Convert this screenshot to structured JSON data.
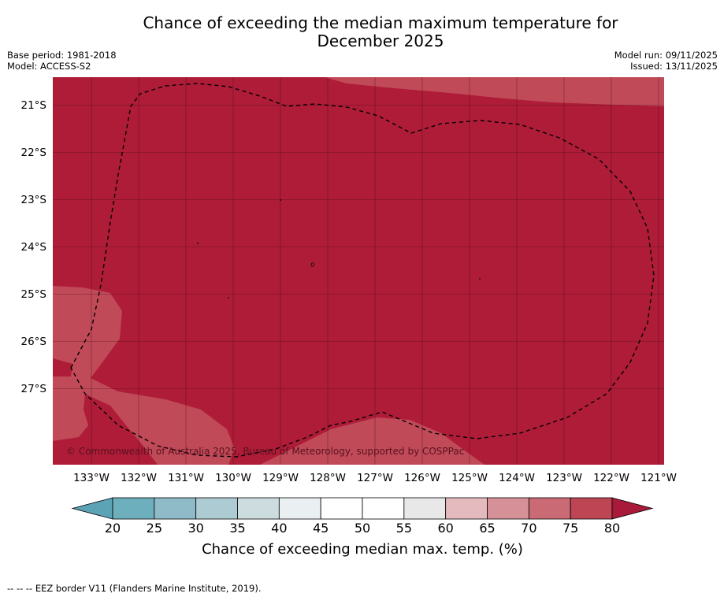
{
  "header": {
    "title_line1": "Chance of exceeding the median maximum temperature for",
    "title_line2": "December 2025",
    "base_period": "Base period: 1981-2018",
    "model": "Model: ACCESS-S2",
    "model_run": "Model run: 09/11/2025",
    "issued": "Issued: 13/11/2025"
  },
  "map": {
    "lat_labels": [
      "21°S",
      "22°S",
      "23°S",
      "24°S",
      "25°S",
      "26°S",
      "27°S"
    ],
    "lon_labels": [
      "133°W",
      "132°W",
      "131°W",
      "130°W",
      "129°W",
      "128°W",
      "127°W",
      "126°W",
      "125°W",
      "124°W",
      "123°W",
      "122°W",
      "121°W"
    ],
    "copyright": "© Commonwealth of Australia 2025, Bureau of Meteorology, supported by COSPPac",
    "colors": {
      "band_80_plus": "#ae1c38",
      "band_75_80": "#c04a58",
      "land_outline": "#000000",
      "grid": "#3c0a14"
    }
  },
  "colorbar": {
    "label": "Chance of exceeding median max. temp. (%)",
    "ticks": [
      "20",
      "25",
      "30",
      "35",
      "40",
      "45",
      "50",
      "55",
      "60",
      "65",
      "70",
      "75",
      "80"
    ],
    "colors": [
      "#5ba3b5",
      "#6eafbe",
      "#8ebbc7",
      "#adcbd2",
      "#ccdcdf",
      "#eaf0f2",
      "#ffffff",
      "#ffffff",
      "#e8e8e8",
      "#e4babf",
      "#d69097",
      "#c96a74",
      "#bd4554",
      "#a9193a"
    ]
  },
  "footnote": "--  --  -- EEZ border V11 (Flanders Marine Institute, 2019)."
}
